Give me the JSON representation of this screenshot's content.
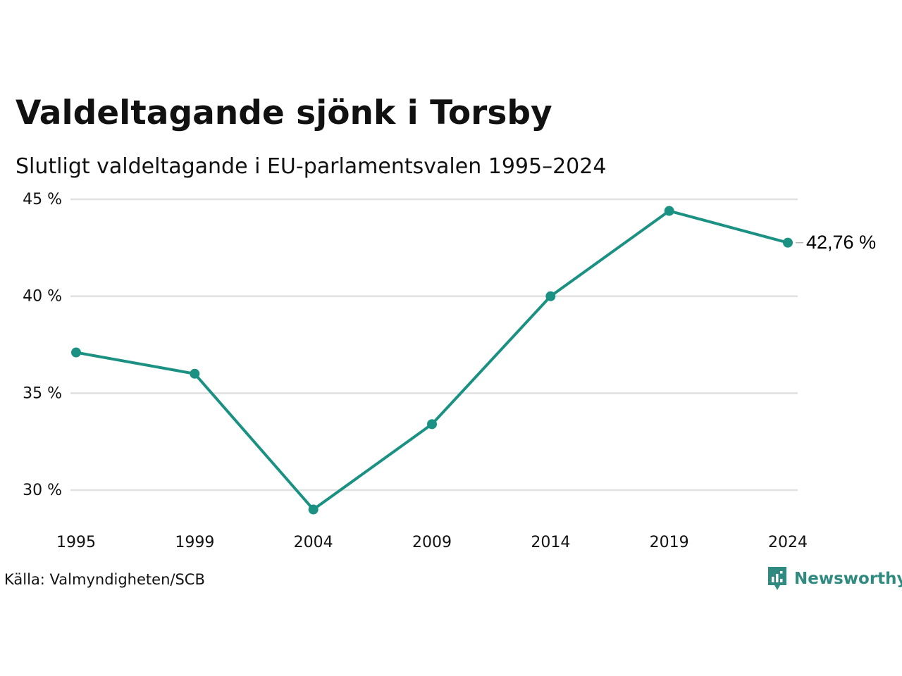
{
  "title": "Valdeltagande sjönk i Torsby",
  "subtitle": "Slutligt valdeltagande i EU-parlamentsvalen 1995–2024",
  "source": "Källa: Valmyndigheten/SCB",
  "brand": {
    "name": "Newsworthy",
    "icon": "newsworthy-logo-icon",
    "color": "#2f8a80"
  },
  "colors": {
    "line": "#1a9183",
    "grid": "#e1e1e1",
    "text": "#111111"
  },
  "chart_data": {
    "type": "line",
    "title": "",
    "xlabel": "",
    "ylabel": "",
    "x": [
      "1995",
      "1999",
      "2004",
      "2009",
      "2014",
      "2019",
      "2024"
    ],
    "series": [
      {
        "values": [
          37.1,
          36.0,
          29.0,
          33.4,
          40.0,
          44.4,
          42.76
        ]
      }
    ],
    "ylim": [
      28,
      45
    ],
    "yticks": [
      30,
      35,
      40,
      45
    ],
    "ytick_labels": [
      "30 %",
      "35 %",
      "40 %",
      "45 %"
    ],
    "xtick_labels": [
      "1995",
      "1999",
      "2004",
      "2009",
      "2014",
      "2019",
      "2024"
    ],
    "end_label": "42,76 %",
    "grid": true,
    "legend": "none"
  }
}
